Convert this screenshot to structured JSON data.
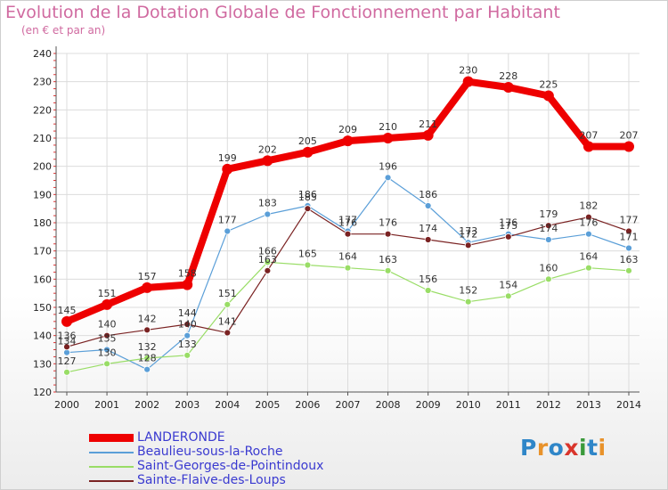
{
  "title": "Evolution de la Dotation Globale de Fonctionnement par Habitant",
  "subtitle": "(en € et par an)",
  "logo_text": "Proxiti",
  "logo_colors": [
    "#2f86c8",
    "#e8922a",
    "#2f86c8",
    "#d9352c",
    "#3a9a3a",
    "#2f86c8",
    "#e8922a"
  ],
  "chart_data": {
    "type": "line",
    "title": "Evolution de la Dotation Globale de Fonctionnement par Habitant",
    "subtitle": "(en € et par an)",
    "xlabel": "",
    "ylabel": "",
    "x": [
      "2000",
      "2001",
      "2002",
      "2003",
      "2004",
      "2005",
      "2006",
      "2007",
      "2008",
      "2009",
      "2010",
      "2011",
      "2012",
      "2013",
      "2014"
    ],
    "yticks": [
      "120",
      "130",
      "140",
      "150",
      "160",
      "170",
      "180",
      "190",
      "200",
      "210",
      "220",
      "230",
      "240"
    ],
    "ylim": [
      120,
      240
    ],
    "grid": true,
    "legend_position": "bottom-left",
    "series": [
      {
        "name": "LANDERONDE",
        "color": "#ee0000",
        "values": [
          145,
          151,
          157,
          158,
          199,
          202,
          205,
          209,
          210,
          211,
          230,
          228,
          225,
          207,
          207
        ],
        "labels": [
          "145",
          "151",
          "157",
          "158",
          "199",
          "202",
          "205",
          "209",
          "210",
          "211",
          "230",
          "228",
          "225",
          "207",
          "207"
        ],
        "emphasis": true
      },
      {
        "name": "Beaulieu-sous-la-Roche",
        "color": "#5b9fd8",
        "values": [
          134,
          135,
          128,
          140,
          177,
          183,
          186,
          177,
          196,
          186,
          173,
          176,
          174,
          176,
          171
        ],
        "labels": [
          "134",
          "135",
          "128",
          "140",
          "177",
          "183",
          "186",
          "177",
          "196",
          "186",
          "173",
          "176",
          "174",
          "176",
          "171"
        ],
        "emphasis": false
      },
      {
        "name": "Saint-Georges-de-Pointindoux",
        "color": "#99dd66",
        "values": [
          127,
          130,
          132,
          133,
          151,
          166,
          165,
          164,
          163,
          156,
          152,
          154,
          160,
          164,
          163
        ],
        "labels": [
          "127",
          "130",
          "132",
          "133",
          "151",
          "166",
          "165",
          "164",
          "163",
          "156",
          "152",
          "154",
          "160",
          "164",
          "163"
        ],
        "emphasis": false
      },
      {
        "name": "Sainte-Flaive-des-Loups",
        "color": "#7a2222",
        "values": [
          136,
          140,
          142,
          144,
          141,
          163,
          185,
          176,
          176,
          174,
          172,
          175,
          179,
          182,
          177
        ],
        "labels": [
          "136",
          "140",
          "142",
          "144",
          "141",
          "163",
          "185",
          "176",
          "176",
          "174",
          "172",
          "175",
          "179",
          "182",
          "177"
        ],
        "emphasis": false
      }
    ]
  }
}
